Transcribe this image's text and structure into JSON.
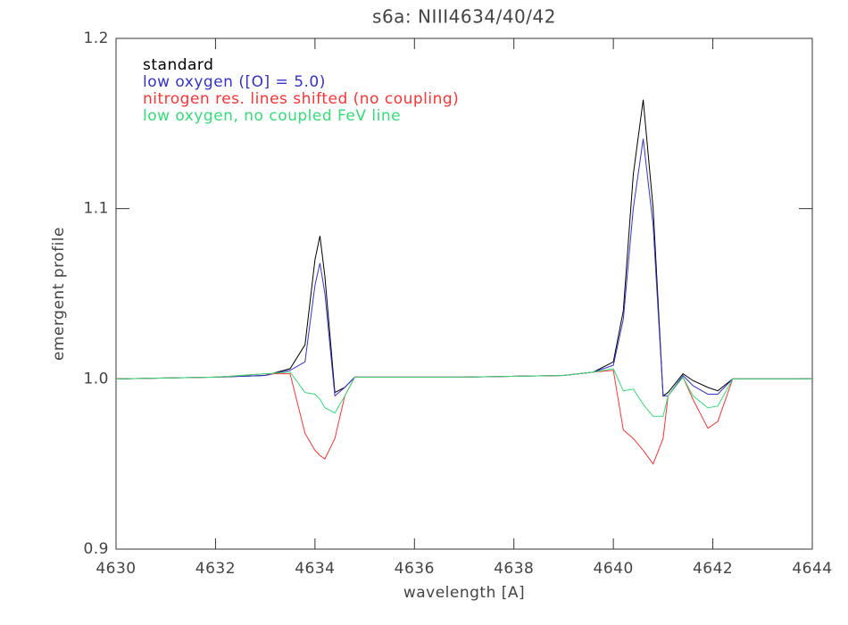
{
  "chart_data": {
    "type": "line",
    "title": "s6a: NIII4634/40/42",
    "x_label": "wavelength [A]",
    "y_label": "emergent profile",
    "x": [
      4630,
      4632,
      4633,
      4633.5,
      4633.8,
      4634.0,
      4634.1,
      4634.2,
      4634.4,
      4634.6,
      4634.8,
      4635,
      4637,
      4639,
      4639.6,
      4640,
      4640.2,
      4640.4,
      4640.6,
      4640.8,
      4641.0,
      4641.1,
      4641.4,
      4641.6,
      4641.9,
      4642.1,
      4642.4,
      4644
    ],
    "series": [
      {
        "name": "standard",
        "color": "#000000",
        "values": [
          1.0,
          1.001,
          1.002,
          1.006,
          1.02,
          1.07,
          1.084,
          1.06,
          0.992,
          0.995,
          1.001,
          1.001,
          1.001,
          1.002,
          1.004,
          1.01,
          1.04,
          1.12,
          1.164,
          1.1,
          0.99,
          0.992,
          1.003,
          0.999,
          0.995,
          0.993,
          1.0,
          1.0
        ]
      },
      {
        "name": "low oxygen ([O] = 5.0)",
        "color": "#3333cc",
        "values": [
          1.0,
          1.001,
          1.002,
          1.005,
          1.01,
          1.055,
          1.068,
          1.05,
          0.99,
          0.995,
          1.001,
          1.001,
          1.001,
          1.002,
          1.004,
          1.008,
          1.035,
          1.1,
          1.141,
          1.09,
          0.99,
          0.99,
          1.002,
          0.996,
          0.991,
          0.991,
          1.0,
          1.0
        ]
      },
      {
        "name": "nitrogen res. lines shifted (no coupling)",
        "color": "#ff3333",
        "values": [
          1.0,
          1.001,
          1.003,
          1.003,
          0.968,
          0.958,
          0.955,
          0.953,
          0.965,
          0.99,
          1.001,
          1.001,
          1.001,
          1.002,
          1.004,
          1.005,
          0.97,
          0.965,
          0.958,
          0.95,
          0.965,
          0.99,
          1.001,
          0.988,
          0.971,
          0.975,
          1.0,
          1.0
        ]
      },
      {
        "name": "low oxygen, no coupled FeV line",
        "color": "#33dd77",
        "values": [
          1.0,
          1.001,
          1.003,
          1.004,
          0.992,
          0.991,
          0.988,
          0.983,
          0.98,
          0.99,
          1.001,
          1.001,
          1.001,
          1.002,
          1.004,
          1.006,
          0.993,
          0.994,
          0.985,
          0.978,
          0.978,
          0.99,
          1.001,
          0.99,
          0.983,
          0.984,
          1.0,
          1.0
        ]
      }
    ],
    "xlim": [
      4630,
      4644
    ],
    "xticks": [
      4630,
      4632,
      4634,
      4636,
      4638,
      4640,
      4642,
      4644
    ],
    "ylim": [
      0.9,
      1.2
    ],
    "yticks": [
      0.9,
      {
        "value": 1.0,
        "label": "1.0"
      },
      1.1,
      1.2
    ],
    "legend": "upper left"
  }
}
